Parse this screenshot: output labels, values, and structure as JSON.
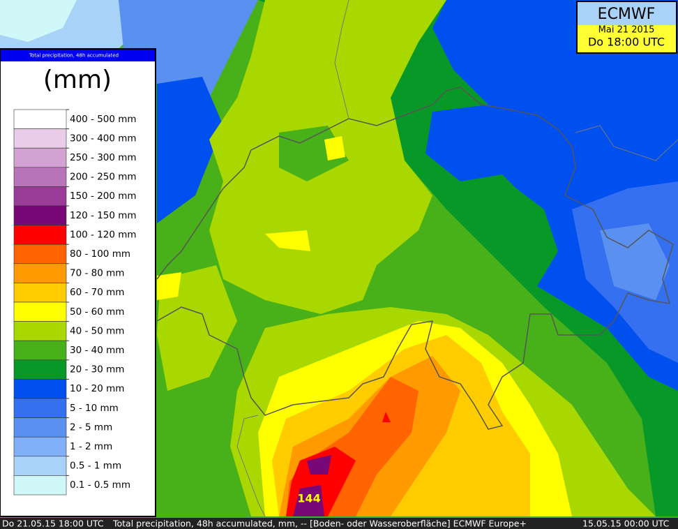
{
  "header": {
    "model": "ECMWF",
    "date": "Mai 21 2015",
    "time": "Do 18:00 UTC"
  },
  "legend": {
    "title": "Total precipitation, 48h accumulated",
    "unit": "(mm)",
    "items": [
      {
        "label": "400 - 500 mm",
        "color": "#ffffff"
      },
      {
        "label": "300 - 400 mm",
        "color": "#e8cce8"
      },
      {
        "label": "250 - 300 mm",
        "color": "#d2a2d2"
      },
      {
        "label": "200 - 250 mm",
        "color": "#b874b8"
      },
      {
        "label": "150 - 200 mm",
        "color": "#983c98"
      },
      {
        "label": "120 - 150 mm",
        "color": "#780878"
      },
      {
        "label": "100 - 120 mm",
        "color": "#ff0000"
      },
      {
        "label": "80 - 100 mm",
        "color": "#ff6400"
      },
      {
        "label": "70 - 80 mm",
        "color": "#ff9a00"
      },
      {
        "label": "60 - 70 mm",
        "color": "#ffcc00"
      },
      {
        "label": "50 - 60 mm",
        "color": "#ffff00"
      },
      {
        "label": "40 - 50 mm",
        "color": "#a8d800"
      },
      {
        "label": "30 - 40 mm",
        "color": "#48b018"
      },
      {
        "label": "20 - 30 mm",
        "color": "#089828"
      },
      {
        "label": "10 - 20 mm",
        "color": "#0050f0"
      },
      {
        "label": "5 - 10 mm",
        "color": "#3470f0"
      },
      {
        "label": "2 - 5 mm",
        "color": "#5a90f0"
      },
      {
        "label": "1 - 2 mm",
        "color": "#82b0f8"
      },
      {
        "label": "0.5 - 1 mm",
        "color": "#a8d2f8"
      },
      {
        "label": "0.1 - 0.5 mm",
        "color": "#d0f8f8"
      }
    ]
  },
  "map": {
    "max_label": "144"
  },
  "footer": {
    "valid": "Do 21.05.15 18:00 UTC",
    "description": "Total precipitation, 48h accumulated, mm, -- [Boden- oder Wasseroberfläche] ECMWF Europe+",
    "run": "15.05.15 00:00 UTC"
  }
}
